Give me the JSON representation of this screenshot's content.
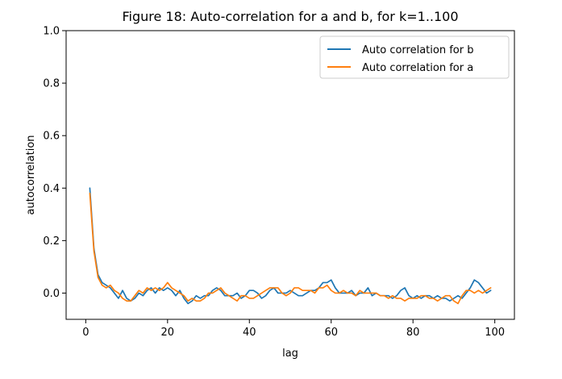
{
  "chart_data": {
    "type": "line",
    "title": "Figure 18: Auto-correlation for a and b, for k=1..100",
    "xlabel": "lag",
    "ylabel": "autocorrelation",
    "xlim": [
      -4.8,
      104.8
    ],
    "ylim": [
      -0.1,
      1.0
    ],
    "xticks": [
      0,
      20,
      40,
      60,
      80,
      100
    ],
    "yticks": [
      0.0,
      0.2,
      0.4,
      0.6,
      0.8,
      1.0
    ],
    "xtick_labels": [
      "0",
      "20",
      "40",
      "60",
      "80",
      "100"
    ],
    "ytick_labels": [
      "0.0",
      "0.2",
      "0.4",
      "0.6",
      "0.8",
      "1.0"
    ],
    "grid": false,
    "legend_position": "upper right",
    "series": [
      {
        "name": "Auto correlation for b",
        "color": "#1f77b4",
        "x": [
          1,
          2,
          3,
          4,
          5,
          6,
          7,
          8,
          9,
          10,
          11,
          12,
          13,
          14,
          15,
          16,
          17,
          18,
          19,
          20,
          21,
          22,
          23,
          24,
          25,
          26,
          27,
          28,
          29,
          30,
          31,
          32,
          33,
          34,
          35,
          36,
          37,
          38,
          39,
          40,
          41,
          42,
          43,
          44,
          45,
          46,
          47,
          48,
          49,
          50,
          51,
          52,
          53,
          54,
          55,
          56,
          57,
          58,
          59,
          60,
          61,
          62,
          63,
          64,
          65,
          66,
          67,
          68,
          69,
          70,
          71,
          72,
          73,
          74,
          75,
          76,
          77,
          78,
          79,
          80,
          81,
          82,
          83,
          84,
          85,
          86,
          87,
          88,
          89,
          90,
          91,
          92,
          93,
          94,
          95,
          96,
          97,
          98,
          99
        ],
        "values": [
          0.4,
          0.17,
          0.07,
          0.04,
          0.03,
          0.02,
          0.0,
          -0.02,
          0.01,
          -0.02,
          -0.03,
          -0.02,
          0.0,
          -0.01,
          0.01,
          0.02,
          0.0,
          0.02,
          0.01,
          0.02,
          0.01,
          -0.01,
          0.01,
          -0.02,
          -0.04,
          -0.03,
          -0.01,
          -0.02,
          -0.01,
          -0.01,
          0.01,
          0.02,
          0.01,
          -0.01,
          -0.01,
          -0.01,
          0.0,
          -0.02,
          -0.01,
          0.01,
          0.01,
          0.0,
          -0.02,
          -0.01,
          0.01,
          0.02,
          0.0,
          0.0,
          0.0,
          0.01,
          0.0,
          -0.01,
          -0.01,
          0.0,
          0.01,
          0.01,
          0.02,
          0.04,
          0.04,
          0.05,
          0.02,
          0.0,
          0.0,
          0.0,
          0.01,
          -0.01,
          0.0,
          0.0,
          0.02,
          -0.01,
          0.0,
          -0.01,
          -0.01,
          -0.01,
          -0.02,
          -0.01,
          0.01,
          0.02,
          -0.01,
          -0.02,
          -0.01,
          -0.02,
          -0.01,
          -0.01,
          -0.02,
          -0.01,
          -0.02,
          -0.02,
          -0.03,
          -0.02,
          -0.01,
          -0.02,
          0.0,
          0.02,
          0.05,
          0.04,
          0.02,
          0.0,
          0.01
        ]
      },
      {
        "name": "Auto correlation for a",
        "color": "#ff7f0e",
        "x": [
          1,
          2,
          3,
          4,
          5,
          6,
          7,
          8,
          9,
          10,
          11,
          12,
          13,
          14,
          15,
          16,
          17,
          18,
          19,
          20,
          21,
          22,
          23,
          24,
          25,
          26,
          27,
          28,
          29,
          30,
          31,
          32,
          33,
          34,
          35,
          36,
          37,
          38,
          39,
          40,
          41,
          42,
          43,
          44,
          45,
          46,
          47,
          48,
          49,
          50,
          51,
          52,
          53,
          54,
          55,
          56,
          57,
          58,
          59,
          60,
          61,
          62,
          63,
          64,
          65,
          66,
          67,
          68,
          69,
          70,
          71,
          72,
          73,
          74,
          75,
          76,
          77,
          78,
          79,
          80,
          81,
          82,
          83,
          84,
          85,
          86,
          87,
          88,
          89,
          90,
          91,
          92,
          93,
          94,
          95,
          96,
          97,
          98,
          99
        ],
        "values": [
          0.38,
          0.16,
          0.06,
          0.03,
          0.02,
          0.03,
          0.01,
          0.0,
          -0.02,
          -0.03,
          -0.03,
          -0.01,
          0.01,
          0.0,
          0.02,
          0.01,
          0.02,
          0.01,
          0.02,
          0.04,
          0.02,
          0.01,
          0.0,
          -0.01,
          -0.03,
          -0.02,
          -0.03,
          -0.03,
          -0.02,
          0.0,
          0.0,
          0.01,
          0.02,
          0.0,
          -0.01,
          -0.02,
          -0.03,
          -0.01,
          -0.01,
          -0.02,
          -0.02,
          -0.01,
          0.0,
          0.01,
          0.02,
          0.02,
          0.02,
          0.0,
          -0.01,
          0.0,
          0.02,
          0.02,
          0.01,
          0.01,
          0.01,
          0.0,
          0.02,
          0.02,
          0.03,
          0.01,
          0.0,
          0.0,
          0.01,
          0.0,
          0.0,
          -0.01,
          0.01,
          0.0,
          0.0,
          0.0,
          0.0,
          -0.01,
          -0.01,
          -0.02,
          -0.01,
          -0.02,
          -0.02,
          -0.03,
          -0.02,
          -0.02,
          -0.02,
          -0.01,
          -0.01,
          -0.02,
          -0.02,
          -0.03,
          -0.02,
          -0.01,
          -0.01,
          -0.03,
          -0.04,
          -0.01,
          0.01,
          0.01,
          0.0,
          0.01,
          0.0,
          0.01,
          0.02
        ]
      }
    ]
  }
}
